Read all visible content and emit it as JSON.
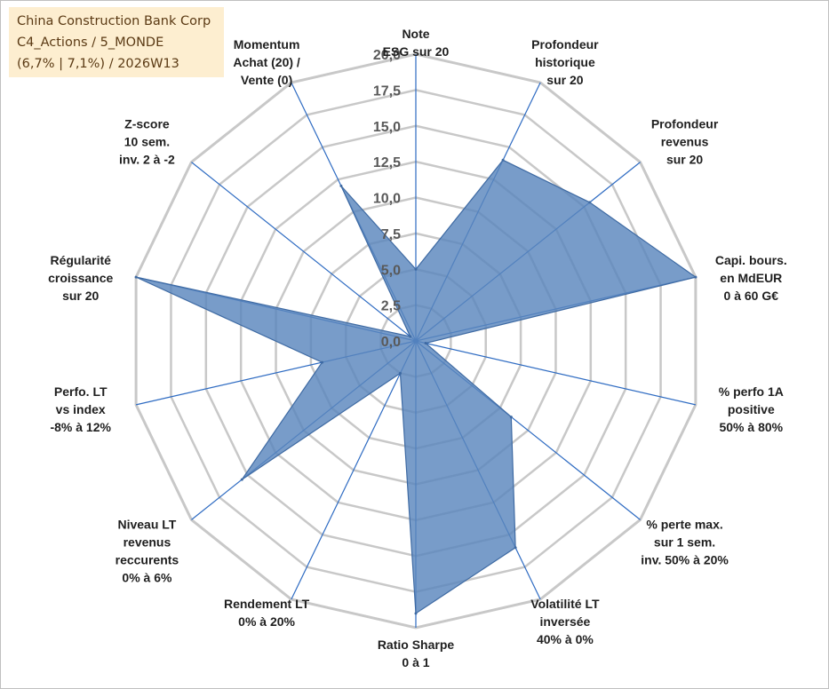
{
  "info_box": {
    "line1": "China Construction Bank Corp",
    "line2": "C4_Actions / 5_MONDE",
    "line3": "(6,7% | 7,1%) / 2026W13"
  },
  "colors": {
    "fill": "#5a86bd",
    "edge": "#3e6aa3",
    "spoke": "#2e6bc2",
    "grid": "#c8c8c8",
    "tick": "#595959",
    "info_bg": "#fdeed0"
  },
  "chart_data": {
    "type": "radar",
    "title": "",
    "range": [
      0,
      20
    ],
    "ticks": [
      "0,0",
      "2,5",
      "5,0",
      "7,5",
      "10,0",
      "12,5",
      "15,0",
      "17,5",
      "20,0"
    ],
    "axes": [
      {
        "label": [
          "Note",
          "ESG sur 20"
        ],
        "value": 5
      },
      {
        "label": [
          "Profondeur",
          "historique",
          "sur 20"
        ],
        "value": 14
      },
      {
        "label": [
          "Profondeur",
          "revenus",
          "sur 20"
        ],
        "value": 15.5
      },
      {
        "label": [
          "Capi. bours.",
          "en MdEUR",
          "0 à 60 G€"
        ],
        "value": 20
      },
      {
        "label": [
          "% perfo 1A",
          "positive",
          "50% à 80%"
        ],
        "value": 0.7
      },
      {
        "label": [
          "% perte max.",
          "sur 1 sem.",
          "inv. 50% à 20%"
        ],
        "value": 8.5
      },
      {
        "label": [
          "Volatilité LT",
          "inversée",
          "40% à 0%"
        ],
        "value": 16
      },
      {
        "label": [
          "Ratio Sharpe",
          "0 à 1"
        ],
        "value": 19
      },
      {
        "label": [
          "Rendement LT",
          "0% à 20%"
        ],
        "value": 2.5
      },
      {
        "label": [
          "Niveau LT",
          "revenus",
          "reccurents",
          "0% à 6%"
        ],
        "value": 15.5
      },
      {
        "label": [
          "Perfo. LT",
          "vs index",
          "-8% à 12%"
        ],
        "value": 6.7
      },
      {
        "label": [
          "Régularité",
          "croissance",
          "sur 20"
        ],
        "value": 20
      },
      {
        "label": [
          "Z-score",
          "10 sem.",
          "inv. 2 à -2"
        ],
        "value": 0.5
      },
      {
        "label": [
          "Momentum",
          "Achat (20) /",
          "Vente (0)"
        ],
        "value": 12
      }
    ]
  }
}
